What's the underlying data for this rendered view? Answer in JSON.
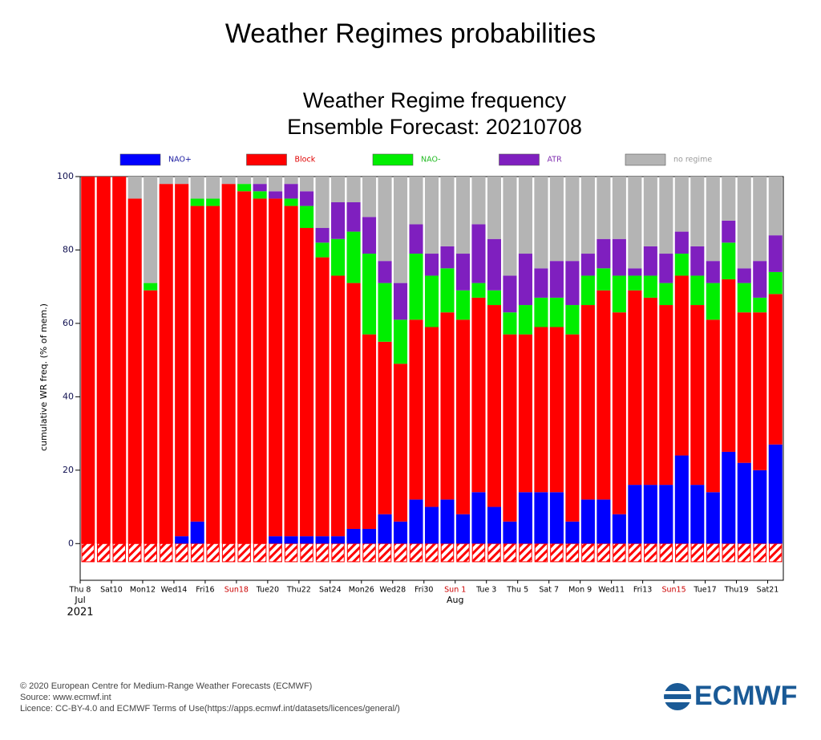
{
  "page_title": "Weather Regimes probabilities",
  "chart_data": {
    "type": "stacked_bar",
    "title": "Weather Regime frequency",
    "subtitle": "Ensemble Forecast: 20210708",
    "y_label": "cumulative WR freq. (% of mem.)",
    "categories": [
      "Thu 8",
      null,
      "Sat10",
      null,
      "Mon12",
      null,
      "Wed14",
      null,
      "Fri16",
      null,
      "Sun18",
      null,
      "Tue20",
      null,
      "Thu22",
      null,
      "Sat24",
      null,
      "Mon26",
      null,
      "Wed28",
      null,
      "Fri30",
      null,
      "Sun 1",
      null,
      "Tue 3",
      null,
      "Thu 5",
      null,
      "Sat 7",
      null,
      "Mon 9",
      null,
      "Wed11",
      null,
      "Fri13",
      null,
      "Sun15",
      null,
      "Tue17",
      null,
      "Thu19",
      null,
      "Sat21"
    ],
    "month_labels": [
      {
        "index": 0,
        "label": "Jul"
      },
      {
        "index": 24,
        "label": "Aug"
      }
    ],
    "year": "2021",
    "ylim": [
      -10,
      100
    ],
    "yticks": [
      0,
      20,
      40,
      60,
      80,
      100
    ],
    "series": [
      {
        "name": "NAO+",
        "color": "#0000ff",
        "label_color": "#1a1aa0",
        "values": [
          0,
          0,
          0,
          0,
          0,
          0,
          2,
          6,
          0,
          0,
          0,
          0,
          2,
          2,
          2,
          2,
          2,
          4,
          4,
          8,
          6,
          12,
          10,
          12,
          8,
          14,
          10,
          6,
          14,
          14,
          14,
          6,
          12,
          12,
          8,
          16,
          16,
          16,
          24,
          16,
          14,
          25,
          22,
          20,
          27
        ]
      },
      {
        "name": "Block",
        "color": "#ff0000",
        "label_color": "#e00000",
        "values": [
          100,
          100,
          100,
          94,
          69,
          98,
          96,
          86,
          92,
          98,
          96,
          94,
          92,
          90,
          84,
          76,
          71,
          67,
          53,
          47,
          43,
          49,
          49,
          51,
          53,
          53,
          55,
          51,
          43,
          45,
          45,
          51,
          53,
          57,
          55,
          53,
          51,
          49,
          49,
          49,
          47,
          47,
          41,
          43,
          41
        ]
      },
      {
        "name": "NAO-",
        "color": "#00ee00",
        "label_color": "#22bb22",
        "values": [
          0,
          0,
          0,
          0,
          2,
          0,
          0,
          2,
          2,
          0,
          2,
          2,
          0,
          2,
          6,
          4,
          10,
          14,
          22,
          16,
          12,
          18,
          14,
          12,
          8,
          4,
          4,
          6,
          8,
          8,
          8,
          8,
          8,
          6,
          10,
          4,
          6,
          6,
          6,
          8,
          10,
          10,
          8,
          4,
          6
        ]
      },
      {
        "name": "ATR",
        "color": "#7f1fbf",
        "label_color": "#8030b0",
        "values": [
          0,
          0,
          0,
          0,
          0,
          0,
          0,
          0,
          0,
          0,
          0,
          2,
          2,
          4,
          4,
          4,
          10,
          8,
          10,
          6,
          10,
          8,
          6,
          6,
          10,
          16,
          14,
          10,
          14,
          8,
          10,
          12,
          6,
          8,
          10,
          2,
          8,
          8,
          6,
          8,
          6,
          6,
          4,
          10,
          10
        ]
      },
      {
        "name": "no regime",
        "color": "#b4b4b4",
        "label_color": "#999999",
        "values": [
          0,
          0,
          0,
          6,
          29,
          2,
          2,
          6,
          6,
          2,
          2,
          2,
          4,
          2,
          4,
          14,
          7,
          7,
          11,
          23,
          29,
          13,
          21,
          19,
          21,
          13,
          17,
          27,
          21,
          25,
          23,
          23,
          21,
          17,
          17,
          25,
          19,
          21,
          15,
          19,
          23,
          12,
          25,
          23,
          16
        ]
      }
    ]
  },
  "footer": [
    "© 2020 European Centre for Medium-Range Weather Forecasts (ECMWF)",
    "Source: www.ecmwf.int",
    "Licence: CC-BY-4.0 and ECMWF Terms of Use(https://apps.ecmwf.int/datasets/licences/general/)"
  ],
  "logo": "ECMWF"
}
